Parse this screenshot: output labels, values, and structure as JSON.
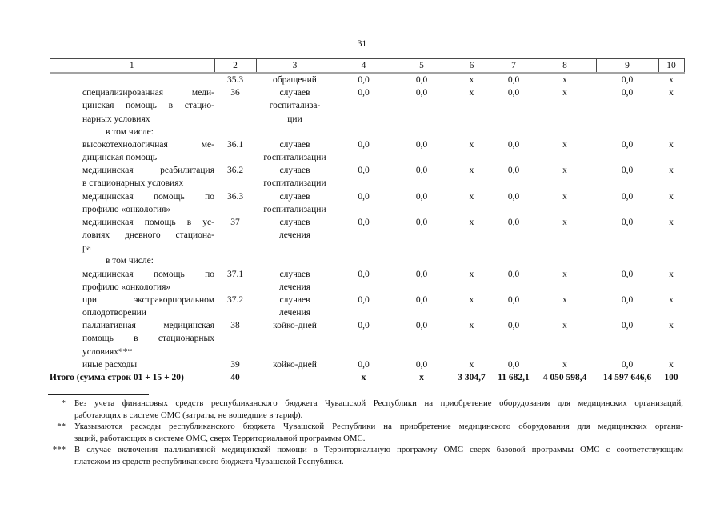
{
  "page_number": "31",
  "table": {
    "header_cols": [
      "1",
      "2",
      "3",
      "4",
      "5",
      "6",
      "7",
      "8",
      "9",
      "10"
    ],
    "rows": [
      {
        "type": "data",
        "label_lines": [],
        "row_no": "35.3",
        "unit_lines": [
          "обращений"
        ],
        "values": [
          "0,0",
          "0,0",
          "x",
          "0,0",
          "x",
          "0,0",
          "x"
        ]
      },
      {
        "type": "data",
        "label_lines": [
          "специализированная меди-",
          "цинская помощь в стацио-",
          "нарных условиях"
        ],
        "row_no": "36",
        "unit_lines": [
          "случаев",
          "госпитализа-",
          "ции"
        ],
        "values": [
          "0,0",
          "0,0",
          "x",
          "0,0",
          "x",
          "0,0",
          "x"
        ]
      },
      {
        "type": "subheader",
        "label_lines": [
          "в том числе:"
        ],
        "row_no": "",
        "unit_lines": [],
        "values": [
          "",
          "",
          "",
          "",
          "",
          "",
          ""
        ]
      },
      {
        "type": "data",
        "label_lines": [
          "высокотехнологичная ме-",
          "дицинская помощь"
        ],
        "row_no": "36.1",
        "unit_lines": [
          "случаев",
          "госпитализации"
        ],
        "values": [
          "0,0",
          "0,0",
          "x",
          "0,0",
          "x",
          "0,0",
          "x"
        ]
      },
      {
        "type": "data",
        "label_lines": [
          "медицинская реабилитация",
          "в стационарных условиях"
        ],
        "row_no": "36.2",
        "unit_lines": [
          "случаев",
          "госпитализации"
        ],
        "values": [
          "0,0",
          "0,0",
          "x",
          "0,0",
          "x",
          "0,0",
          "x"
        ]
      },
      {
        "type": "data",
        "label_lines": [
          "медицинская помощь по",
          "профилю «онкология»"
        ],
        "row_no": "36.3",
        "unit_lines": [
          "случаев",
          "госпитализации"
        ],
        "values": [
          "0,0",
          "0,0",
          "x",
          "0,0",
          "x",
          "0,0",
          "x"
        ]
      },
      {
        "type": "data",
        "label_lines": [
          "медицинская помощь в ус-",
          "ловиях дневного стациона-",
          "ра"
        ],
        "row_no": "37",
        "unit_lines": [
          "случаев",
          "лечения"
        ],
        "values": [
          "0,0",
          "0,0",
          "x",
          "0,0",
          "x",
          "0,0",
          "x"
        ]
      },
      {
        "type": "subheader",
        "label_lines": [
          "в том числе:"
        ],
        "row_no": "",
        "unit_lines": [],
        "values": [
          "",
          "",
          "",
          "",
          "",
          "",
          ""
        ]
      },
      {
        "type": "data",
        "label_lines": [
          "медицинская помощь по",
          "профилю «онкология»"
        ],
        "row_no": "37.1",
        "unit_lines": [
          "случаев",
          "лечения"
        ],
        "values": [
          "0,0",
          "0,0",
          "x",
          "0,0",
          "x",
          "0,0",
          "x"
        ]
      },
      {
        "type": "data",
        "label_lines": [
          "при экстракорпоральном",
          "оплодотворении"
        ],
        "row_no": "37.2",
        "unit_lines": [
          "случаев",
          "лечения"
        ],
        "values": [
          "0,0",
          "0,0",
          "x",
          "0,0",
          "x",
          "0,0",
          "x"
        ]
      },
      {
        "type": "data",
        "label_lines": [
          "паллиативная медицинская",
          "помощь в стационарных",
          "условиях***"
        ],
        "row_no": "38",
        "unit_lines": [
          "койко-дней"
        ],
        "values": [
          "0,0",
          "0,0",
          "x",
          "0,0",
          "x",
          "0,0",
          "x"
        ]
      },
      {
        "type": "data",
        "label_lines": [
          "иные расходы"
        ],
        "row_no": "39",
        "unit_lines": [
          "койко-дней"
        ],
        "values": [
          "0,0",
          "0,0",
          "x",
          "0,0",
          "x",
          "0,0",
          "x"
        ]
      },
      {
        "type": "total",
        "label_lines": [
          "Итого (сумма строк 01 + 15 + 20)"
        ],
        "row_no": "40",
        "unit_lines": [],
        "values": [
          "x",
          "x",
          "3 304,7",
          "11 682,1",
          "4 050 598,4",
          "14 597 646,6",
          "100"
        ]
      }
    ]
  },
  "footnotes": [
    {
      "marker": "*",
      "lines": [
        "Без учета финансовых средств республиканского бюджета Чувашской Республики на приобретение оборудования для медицинских организаций,",
        "работающих в системе ОМС (затраты, не вошедшие в тариф)."
      ]
    },
    {
      "marker": "**",
      "lines": [
        "Указываются расходы республиканского бюджета Чувашской Республики на приобретение медицинского оборудования для медицинских органи-",
        "заций, работающих в системе ОМС, сверх Территориальной программы ОМС."
      ]
    },
    {
      "marker": "***",
      "lines": [
        "В случае включения паллиативной медицинской помощи в Территориальную программу ОМС сверх базовой программы ОМС с соответствующим",
        "платежом из средств республиканского бюджета Чувашской Республики."
      ]
    }
  ]
}
